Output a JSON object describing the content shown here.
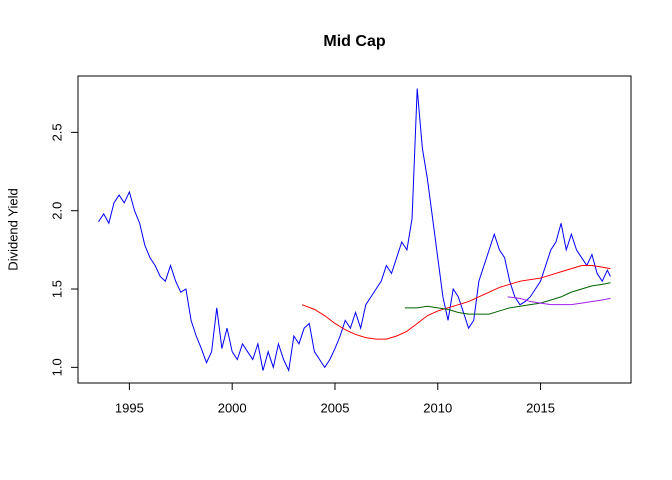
{
  "chart_data": {
    "type": "line",
    "title": "Mid Cap",
    "y_label": "Dividend Yield",
    "xlim": [
      1992.5,
      2019.4
    ],
    "ylim": [
      0.9,
      2.86
    ],
    "xticks": [
      1995,
      2000,
      2005,
      2010,
      2015
    ],
    "yticks": [
      {
        "value": 1,
        "label": "1.0"
      },
      1.5,
      {
        "value": 2,
        "label": "2.0"
      },
      2.5
    ],
    "series": [
      {
        "color": "#0000ff",
        "x": [
          1993.5,
          1993.75,
          1994,
          1994.25,
          1994.5,
          1994.75,
          1995,
          1995.25,
          1995.5,
          1995.75,
          1996,
          1996.25,
          1996.5,
          1996.75,
          1997,
          1997.25,
          1997.5,
          1997.75,
          1998,
          1998.25,
          1998.5,
          1998.75,
          1999,
          1999.25,
          1999.5,
          1999.75,
          2000,
          2000.25,
          2000.5,
          2000.75,
          2001,
          2001.25,
          2001.5,
          2001.75,
          2002,
          2002.25,
          2002.5,
          2002.75,
          2003,
          2003.25,
          2003.5,
          2003.75,
          2004,
          2004.25,
          2004.5,
          2004.75,
          2005,
          2005.25,
          2005.5,
          2005.75,
          2006,
          2006.25,
          2006.5,
          2006.75,
          2007,
          2007.25,
          2007.5,
          2007.75,
          2008,
          2008.25,
          2008.5,
          2008.75,
          2009,
          2009.25,
          2009.5,
          2009.75,
          2010,
          2010.25,
          2010.5,
          2010.75,
          2011,
          2011.25,
          2011.5,
          2011.75,
          2012,
          2012.25,
          2012.5,
          2012.75,
          2013,
          2013.25,
          2013.5,
          2013.75,
          2014,
          2014.25,
          2014.5,
          2014.75,
          2015,
          2015.25,
          2015.5,
          2015.75,
          2016,
          2016.25,
          2016.5,
          2016.75,
          2017,
          2017.25,
          2017.5,
          2017.75,
          2018,
          2018.25,
          2018.4
        ],
        "values": [
          1.93,
          1.98,
          1.92,
          2.05,
          2.1,
          2.05,
          2.12,
          2.0,
          1.92,
          1.78,
          1.7,
          1.65,
          1.58,
          1.55,
          1.65,
          1.55,
          1.48,
          1.5,
          1.3,
          1.2,
          1.12,
          1.03,
          1.1,
          1.38,
          1.12,
          1.25,
          1.1,
          1.05,
          1.15,
          1.1,
          1.05,
          1.15,
          0.98,
          1.1,
          1.0,
          1.15,
          1.05,
          0.98,
          1.2,
          1.15,
          1.25,
          1.28,
          1.1,
          1.05,
          1.0,
          1.05,
          1.12,
          1.2,
          1.3,
          1.25,
          1.35,
          1.25,
          1.4,
          1.45,
          1.5,
          1.55,
          1.65,
          1.6,
          1.7,
          1.8,
          1.75,
          1.95,
          2.78,
          2.4,
          2.2,
          1.95,
          1.7,
          1.45,
          1.3,
          1.5,
          1.45,
          1.35,
          1.25,
          1.3,
          1.55,
          1.65,
          1.75,
          1.85,
          1.75,
          1.7,
          1.55,
          1.45,
          1.4,
          1.42,
          1.45,
          1.5,
          1.55,
          1.65,
          1.75,
          1.8,
          1.92,
          1.75,
          1.85,
          1.75,
          1.7,
          1.65,
          1.72,
          1.6,
          1.55,
          1.62,
          1.58
        ]
      },
      {
        "color": "#ff0000",
        "x": [
          2003.4,
          2004,
          2004.5,
          2005,
          2005.5,
          2006,
          2006.5,
          2007,
          2007.5,
          2008,
          2008.5,
          2009,
          2009.5,
          2010,
          2010.5,
          2011,
          2011.5,
          2012,
          2012.5,
          2013,
          2013.5,
          2014,
          2014.5,
          2015,
          2015.5,
          2016,
          2016.5,
          2017,
          2017.5,
          2018,
          2018.4
        ],
        "values": [
          1.4,
          1.37,
          1.33,
          1.28,
          1.24,
          1.21,
          1.19,
          1.18,
          1.18,
          1.2,
          1.23,
          1.28,
          1.33,
          1.36,
          1.38,
          1.4,
          1.42,
          1.45,
          1.48,
          1.51,
          1.53,
          1.55,
          1.56,
          1.57,
          1.59,
          1.61,
          1.63,
          1.65,
          1.65,
          1.64,
          1.63
        ]
      },
      {
        "color": "#006400",
        "x": [
          2008.4,
          2009,
          2009.5,
          2010,
          2010.5,
          2011,
          2011.5,
          2012,
          2012.5,
          2013,
          2013.5,
          2014,
          2014.5,
          2015,
          2015.5,
          2016,
          2016.5,
          2017,
          2017.5,
          2018,
          2018.4
        ],
        "values": [
          1.38,
          1.38,
          1.39,
          1.38,
          1.37,
          1.35,
          1.34,
          1.34,
          1.34,
          1.36,
          1.38,
          1.39,
          1.4,
          1.41,
          1.43,
          1.45,
          1.48,
          1.5,
          1.52,
          1.53,
          1.54
        ]
      },
      {
        "color": "#a020f0",
        "x": [
          2013.4,
          2014,
          2014.5,
          2015,
          2015.5,
          2016,
          2016.5,
          2017,
          2017.5,
          2018,
          2018.4
        ],
        "values": [
          1.45,
          1.44,
          1.42,
          1.41,
          1.4,
          1.4,
          1.4,
          1.41,
          1.42,
          1.43,
          1.44
        ]
      }
    ]
  }
}
